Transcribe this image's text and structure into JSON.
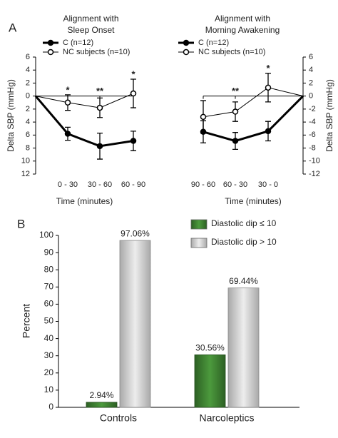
{
  "chart_data": [
    {
      "type": "line",
      "panel": "A",
      "title": [
        "Alignment with",
        "Sleep Onset"
      ],
      "xlabel": "Time (minutes)",
      "ylabel": "Delta SBP (mmHg)",
      "axis_side": "left",
      "categories": [
        null,
        "0 - 30",
        "30 - 60",
        "60 - 90"
      ],
      "series": [
        {
          "name": "C  (n=12)",
          "color": "#000000",
          "marker": "filled",
          "line_width": 3,
          "values": [
            0,
            -5.8,
            -7.7,
            -6.9
          ],
          "errors": [
            null,
            1,
            2,
            1.5
          ]
        },
        {
          "name": "NC subjects  (n=10)",
          "color": "#000000",
          "marker": "open",
          "line_width": 1,
          "values": [
            0,
            -1,
            -1.8,
            0.4
          ],
          "errors": [
            null,
            1.2,
            1.5,
            2.2
          ]
        }
      ],
      "annotations": [
        null,
        "*",
        "**",
        "*"
      ],
      "ylim": [
        -12,
        6
      ],
      "yticks": [
        6,
        4,
        2,
        0,
        {
          "value": -2,
          "label": "2"
        },
        {
          "value": -4,
          "label": "4"
        },
        {
          "value": -6,
          "label": "6"
        },
        {
          "value": -8,
          "label": "8"
        },
        {
          "value": -10,
          "label": "10"
        },
        {
          "value": -12,
          "label": "12"
        }
      ]
    },
    {
      "type": "line",
      "title": [
        "Alignment  with",
        "Morning Awakening"
      ],
      "xlabel": "Time (minutes)",
      "ylabel": "Delta SBP (mmHg)",
      "axis_side": "right",
      "categories": [
        "90 - 60",
        "60 - 30",
        "30 - 0",
        null
      ],
      "series": [
        {
          "name": "C  (n=12)",
          "color": "#000000",
          "marker": "filled",
          "line_width": 3,
          "values": [
            -5.5,
            -6.9,
            -5.4,
            0
          ],
          "errors": [
            1.7,
            1.3,
            1.5,
            null
          ]
        },
        {
          "name": "NC subjects  (n=10)",
          "color": "#000000",
          "marker": "open",
          "line_width": 1,
          "values": [
            -3.2,
            -2.4,
            1.3,
            0
          ],
          "errors": [
            2.5,
            1.5,
            2.2,
            null
          ]
        }
      ],
      "annotations": [
        null,
        "**",
        "*",
        null
      ],
      "ylim": [
        -12,
        6
      ],
      "yticks": [
        6,
        4,
        2,
        0,
        -2,
        -4,
        -6,
        -8,
        -10,
        -12
      ]
    },
    {
      "type": "bar",
      "panel": "B",
      "ylabel": "Percent",
      "categories": [
        "Controls",
        "Narcoleptics"
      ],
      "series": [
        {
          "name": "Diastolic dip ≤ 10",
          "color": "#3f7f33",
          "values": [
            2.94,
            30.56
          ],
          "value_labels": [
            "2.94%",
            "30.56%"
          ]
        },
        {
          "name": "Diastolic dip > 10",
          "color": "#cfcfcf",
          "values": [
            97.06,
            69.44
          ],
          "value_labels": [
            "97.06%",
            "69.44%"
          ]
        }
      ],
      "ylim": [
        0,
        100
      ],
      "yticks": [
        0,
        10,
        20,
        30,
        40,
        50,
        60,
        70,
        80,
        90,
        100
      ]
    }
  ]
}
